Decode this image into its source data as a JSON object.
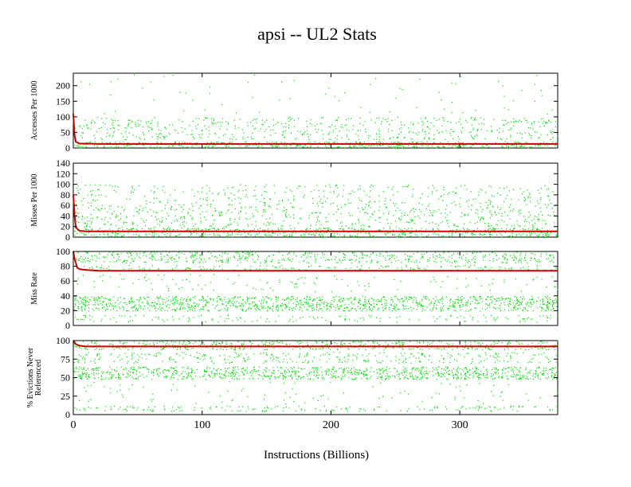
{
  "figure": {
    "title": "apsi -- UL2  Stats",
    "xlabel": "Instructions (Billions)"
  },
  "colors": {
    "background": "#ffffff",
    "axes": "#000000",
    "scatter": "#00dd00",
    "line": "#cc0000"
  },
  "chart_data": [
    {
      "type": "scatter",
      "ylabel": [
        "Accesses Per 1000"
      ],
      "xlim": [
        0,
        376
      ],
      "ylim": [
        0,
        240
      ],
      "xticks": [
        0,
        100,
        200,
        300
      ],
      "yticks": [
        0,
        50,
        100,
        150,
        200
      ],
      "scatter_bands": [
        {
          "y_min": 0,
          "y_max": 22,
          "density": 0.9
        },
        {
          "y_min": 28,
          "y_max": 100,
          "density": 0.3
        },
        {
          "y_min": 110,
          "y_max": 240,
          "density": 0.02
        }
      ],
      "series": [
        {
          "values": [
            [
              0,
              110
            ],
            [
              1,
              40
            ],
            [
              2,
              20
            ],
            [
              5,
              14
            ],
            [
              10,
              14
            ],
            [
              20,
              13
            ],
            [
              50,
              13
            ],
            [
              100,
              13
            ],
            [
              200,
              13
            ],
            [
              300,
              13
            ],
            [
              376,
              13
            ]
          ]
        }
      ]
    },
    {
      "type": "scatter",
      "ylabel": [
        "Misses Per 1000"
      ],
      "xlim": [
        0,
        376
      ],
      "ylim": [
        0,
        140
      ],
      "xticks": [
        0,
        100,
        200,
        300
      ],
      "yticks": [
        0,
        20,
        40,
        60,
        80,
        100,
        120,
        140
      ],
      "scatter_bands": [
        {
          "y_min": 0,
          "y_max": 18,
          "density": 0.85
        },
        {
          "y_min": 20,
          "y_max": 60,
          "density": 0.3
        },
        {
          "y_min": 60,
          "y_max": 100,
          "density": 0.2
        }
      ],
      "series": [
        {
          "values": [
            [
              0,
              80
            ],
            [
              1,
              40
            ],
            [
              2,
              18
            ],
            [
              5,
              12
            ],
            [
              10,
              11
            ],
            [
              20,
              11
            ],
            [
              50,
              11
            ],
            [
              100,
              11
            ],
            [
              200,
              11
            ],
            [
              300,
              11
            ],
            [
              376,
              11
            ]
          ]
        }
      ]
    },
    {
      "type": "scatter",
      "ylabel": [
        "Miss Rate"
      ],
      "xlim": [
        0,
        376
      ],
      "ylim": [
        0,
        100
      ],
      "xticks": [
        0,
        100,
        200,
        300
      ],
      "yticks": [
        0,
        20,
        40,
        60,
        80,
        100
      ],
      "scatter_bands": [
        {
          "y_min": 85,
          "y_max": 100,
          "density": 0.6
        },
        {
          "y_min": 75,
          "y_max": 82,
          "density": 0.4
        },
        {
          "y_min": 20,
          "y_max": 40,
          "density": 0.95
        },
        {
          "y_min": 5,
          "y_max": 15,
          "density": 0.25
        },
        {
          "y_min": 45,
          "y_max": 70,
          "density": 0.08
        }
      ],
      "series": [
        {
          "values": [
            [
              0,
              100
            ],
            [
              1,
              90
            ],
            [
              3,
              78
            ],
            [
              5,
              76
            ],
            [
              10,
              75
            ],
            [
              20,
              74
            ],
            [
              35,
              74
            ],
            [
              50,
              74
            ],
            [
              100,
              74
            ],
            [
              200,
              74
            ],
            [
              300,
              74
            ],
            [
              376,
              74
            ]
          ]
        }
      ]
    },
    {
      "type": "scatter",
      "ylabel": [
        "% Evictions Never",
        "Referenced"
      ],
      "xlim": [
        0,
        376
      ],
      "ylim": [
        0,
        100
      ],
      "xticks": [
        0,
        100,
        200,
        300
      ],
      "yticks": [
        0,
        25,
        50,
        75,
        100
      ],
      "scatter_bands": [
        {
          "y_min": 88,
          "y_max": 100,
          "density": 0.7
        },
        {
          "y_min": 70,
          "y_max": 85,
          "density": 0.35
        },
        {
          "y_min": 48,
          "y_max": 65,
          "density": 0.95
        },
        {
          "y_min": 5,
          "y_max": 12,
          "density": 0.4
        },
        {
          "y_min": 15,
          "y_max": 45,
          "density": 0.05
        }
      ],
      "series": [
        {
          "values": [
            [
              0,
              100
            ],
            [
              2,
              95
            ],
            [
              5,
              93
            ],
            [
              10,
              92
            ],
            [
              20,
              92
            ],
            [
              50,
              92
            ],
            [
              100,
              92
            ],
            [
              200,
              92
            ],
            [
              300,
              92
            ],
            [
              376,
              92
            ]
          ]
        }
      ]
    }
  ]
}
